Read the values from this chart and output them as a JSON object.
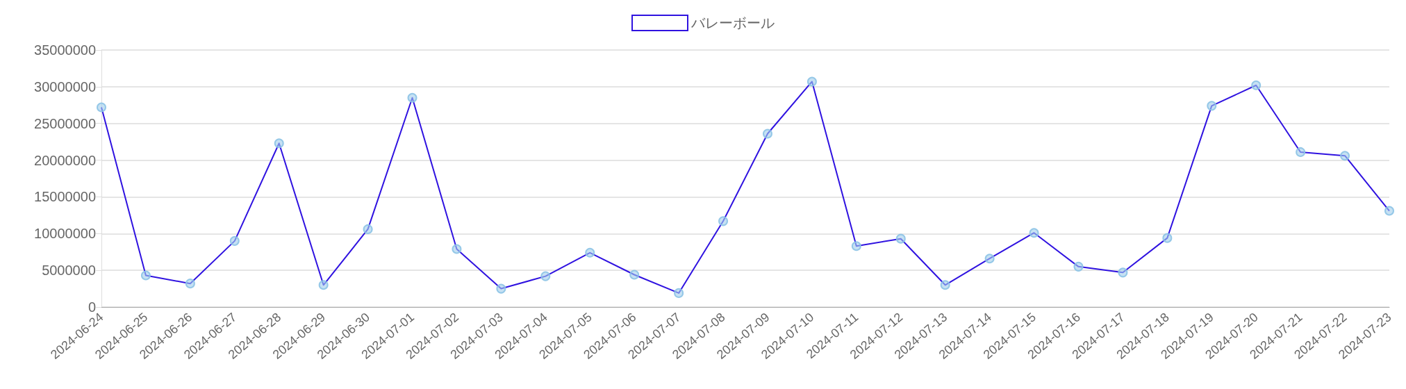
{
  "chart_data": {
    "type": "line",
    "categories": [
      "2024-06-24",
      "2024-06-25",
      "2024-06-26",
      "2024-06-27",
      "2024-06-28",
      "2024-06-29",
      "2024-06-30",
      "2024-07-01",
      "2024-07-02",
      "2024-07-03",
      "2024-07-04",
      "2024-07-05",
      "2024-07-06",
      "2024-07-07",
      "2024-07-08",
      "2024-07-09",
      "2024-07-10",
      "2024-07-11",
      "2024-07-12",
      "2024-07-13",
      "2024-07-14",
      "2024-07-15",
      "2024-07-16",
      "2024-07-17",
      "2024-07-18",
      "2024-07-19",
      "2024-07-20",
      "2024-07-21",
      "2024-07-22",
      "2024-07-23"
    ],
    "series": [
      {
        "name": "バレーボール",
        "color": "#2f12e0",
        "values": [
          27200000,
          4300000,
          3200000,
          9000000,
          22300000,
          3000000,
          10600000,
          28500000,
          7900000,
          2500000,
          4200000,
          7400000,
          4400000,
          1900000,
          11700000,
          23600000,
          30700000,
          8300000,
          9300000,
          3000000,
          6600000,
          10100000,
          5500000,
          4700000,
          9400000,
          27400000,
          30200000,
          21100000,
          20600000,
          13100000
        ]
      }
    ],
    "ylim": [
      0,
      35000000
    ],
    "yticks": [
      0,
      5000000,
      10000000,
      15000000,
      20000000,
      25000000,
      30000000,
      35000000
    ],
    "grid": "y",
    "legend": "top",
    "marker": "circle",
    "line_style": "solid"
  }
}
